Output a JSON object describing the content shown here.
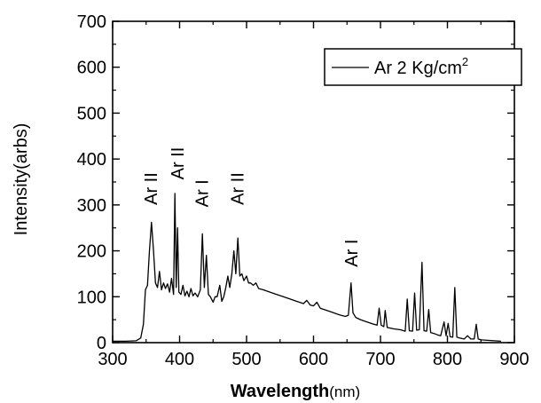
{
  "chart_data": {
    "type": "line",
    "xlabel": "Wavelength(nm)",
    "xlabel_parts": {
      "main": "Wavelength",
      "unit": "(nm)"
    },
    "ylabel": "Intensity(arbs)",
    "xlim": [
      300,
      900
    ],
    "ylim": [
      0,
      700
    ],
    "xticks": [
      300,
      400,
      500,
      600,
      700,
      800,
      900
    ],
    "yticks": [
      0,
      100,
      200,
      300,
      400,
      500,
      600,
      700
    ],
    "legend": {
      "position": "top-right",
      "text_main": "Ar 2 Kg/cm",
      "text_sup": "2"
    },
    "annotations": [
      {
        "text": "Ar II",
        "x": 357,
        "y": 300
      },
      {
        "text": "Ar II",
        "x": 397,
        "y": 355
      },
      {
        "text": "Ar I",
        "x": 433,
        "y": 295
      },
      {
        "text": "Ar II",
        "x": 486,
        "y": 300
      },
      {
        "text": "Ar I",
        "x": 656,
        "y": 165
      }
    ],
    "series": [
      {
        "color": "#000000",
        "points": [
          [
            300,
            3
          ],
          [
            320,
            3
          ],
          [
            335,
            4
          ],
          [
            342,
            10
          ],
          [
            346,
            40
          ],
          [
            349,
            115
          ],
          [
            352,
            125
          ],
          [
            355,
            200
          ],
          [
            358,
            262
          ],
          [
            361,
            200
          ],
          [
            364,
            130
          ],
          [
            367,
            120
          ],
          [
            370,
            155
          ],
          [
            373,
            115
          ],
          [
            376,
            130
          ],
          [
            379,
            118
          ],
          [
            382,
            128
          ],
          [
            385,
            110
          ],
          [
            388,
            140
          ],
          [
            391,
            105
          ],
          [
            393,
            325
          ],
          [
            395,
            120
          ],
          [
            397,
            250
          ],
          [
            399,
            110
          ],
          [
            402,
            105
          ],
          [
            405,
            125
          ],
          [
            408,
            102
          ],
          [
            411,
            112
          ],
          [
            414,
            100
          ],
          [
            417,
            118
          ],
          [
            420,
            102
          ],
          [
            423,
            108
          ],
          [
            427,
            100
          ],
          [
            431,
            115
          ],
          [
            434,
            237
          ],
          [
            437,
            120
          ],
          [
            440,
            190
          ],
          [
            443,
            105
          ],
          [
            446,
            100
          ],
          [
            450,
            88
          ],
          [
            453,
            100
          ],
          [
            456,
            100
          ],
          [
            460,
            125
          ],
          [
            463,
            90
          ],
          [
            466,
            100
          ],
          [
            469,
            120
          ],
          [
            472,
            145
          ],
          [
            475,
            120
          ],
          [
            478,
            150
          ],
          [
            481,
            200
          ],
          [
            484,
            150
          ],
          [
            487,
            228
          ],
          [
            490,
            145
          ],
          [
            493,
            150
          ],
          [
            496,
            135
          ],
          [
            500,
            145
          ],
          [
            503,
            130
          ],
          [
            506,
            130
          ],
          [
            510,
            125
          ],
          [
            514,
            130
          ],
          [
            518,
            118
          ],
          [
            525,
            115
          ],
          [
            535,
            110
          ],
          [
            545,
            105
          ],
          [
            555,
            100
          ],
          [
            565,
            95
          ],
          [
            575,
            90
          ],
          [
            585,
            85
          ],
          [
            590,
            92
          ],
          [
            595,
            82
          ],
          [
            600,
            80
          ],
          [
            605,
            88
          ],
          [
            610,
            75
          ],
          [
            620,
            70
          ],
          [
            630,
            65
          ],
          [
            640,
            60
          ],
          [
            648,
            57
          ],
          [
            652,
            60
          ],
          [
            656,
            130
          ],
          [
            659,
            65
          ],
          [
            663,
            55
          ],
          [
            670,
            50
          ],
          [
            680,
            45
          ],
          [
            690,
            40
          ],
          [
            695,
            38
          ],
          [
            698,
            75
          ],
          [
            701,
            38
          ],
          [
            705,
            35
          ],
          [
            707,
            70
          ],
          [
            710,
            33
          ],
          [
            720,
            30
          ],
          [
            730,
            28
          ],
          [
            737,
            25
          ],
          [
            740,
            95
          ],
          [
            743,
            26
          ],
          [
            748,
            25
          ],
          [
            751,
            108
          ],
          [
            754,
            27
          ],
          [
            758,
            28
          ],
          [
            762,
            175
          ],
          [
            765,
            26
          ],
          [
            769,
            25
          ],
          [
            772,
            72
          ],
          [
            775,
            22
          ],
          [
            780,
            20
          ],
          [
            785,
            17
          ],
          [
            790,
            15
          ],
          [
            795,
            45
          ],
          [
            798,
            15
          ],
          [
            801,
            42
          ],
          [
            804,
            13
          ],
          [
            808,
            12
          ],
          [
            811,
            120
          ],
          [
            814,
            12
          ],
          [
            818,
            10
          ],
          [
            825,
            8
          ],
          [
            830,
            15
          ],
          [
            835,
            8
          ],
          [
            840,
            8
          ],
          [
            843,
            40
          ],
          [
            846,
            8
          ],
          [
            850,
            6
          ],
          [
            860,
            5
          ],
          [
            870,
            4
          ],
          [
            880,
            3
          ]
        ]
      }
    ]
  }
}
